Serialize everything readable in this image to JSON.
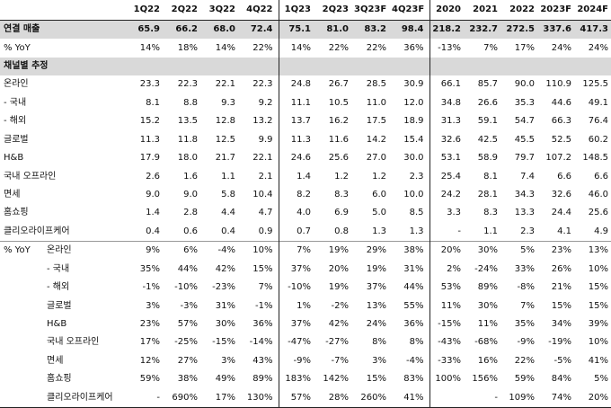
{
  "columns": [
    "1Q22",
    "2Q22",
    "3Q22",
    "4Q22",
    "1Q23",
    "2Q23",
    "3Q23F",
    "4Q23F",
    "2020",
    "2021",
    "2022",
    "2023F",
    "2024F"
  ],
  "rows": [
    {
      "label": "연결 매출",
      "sub": "",
      "style": "gray",
      "values": [
        "65.9",
        "66.2",
        "68.0",
        "72.4",
        "75.1",
        "81.0",
        "83.2",
        "98.4",
        "218.2",
        "232.7",
        "272.5",
        "337.6",
        "417.3"
      ]
    },
    {
      "label": "% YoY",
      "sub": "",
      "style": "",
      "values": [
        "14%",
        "18%",
        "14%",
        "22%",
        "14%",
        "22%",
        "22%",
        "36%",
        "-13%",
        "7%",
        "17%",
        "24%",
        "24%"
      ]
    },
    {
      "label": "채널별 추정",
      "sub": "",
      "style": "gray",
      "values": [
        "",
        "",
        "",
        "",
        "",
        "",
        "",
        "",
        "",
        "",
        "",
        "",
        ""
      ]
    },
    {
      "label": "온라인",
      "sub": "",
      "style": "",
      "values": [
        "23.3",
        "22.3",
        "22.1",
        "22.3",
        "24.8",
        "26.7",
        "28.5",
        "30.9",
        "66.1",
        "85.7",
        "90.0",
        "110.9",
        "125.5"
      ]
    },
    {
      "label": " - 국내",
      "sub": "",
      "style": "",
      "values": [
        "8.1",
        "8.8",
        "9.3",
        "9.2",
        "11.1",
        "10.5",
        "11.0",
        "12.0",
        "34.8",
        "26.6",
        "35.3",
        "44.6",
        "49.1"
      ]
    },
    {
      "label": " - 해외",
      "sub": "",
      "style": "",
      "values": [
        "15.2",
        "13.5",
        "12.8",
        "13.2",
        "13.7",
        "16.2",
        "17.5",
        "18.9",
        "31.3",
        "59.1",
        "54.7",
        "66.3",
        "76.4"
      ]
    },
    {
      "label": "글로벌",
      "sub": "",
      "style": "",
      "values": [
        "11.3",
        "11.8",
        "12.5",
        "9.9",
        "11.3",
        "11.6",
        "14.2",
        "15.4",
        "32.6",
        "42.5",
        "45.5",
        "52.5",
        "60.2"
      ]
    },
    {
      "label": "H&B",
      "sub": "",
      "style": "",
      "values": [
        "17.9",
        "18.0",
        "21.7",
        "22.1",
        "24.6",
        "25.6",
        "27.0",
        "30.0",
        "53.1",
        "58.9",
        "79.7",
        "107.2",
        "148.5"
      ]
    },
    {
      "label": "국내 오프라인",
      "sub": "",
      "style": "",
      "values": [
        "2.6",
        "1.6",
        "1.1",
        "2.1",
        "1.4",
        "1.2",
        "1.2",
        "2.3",
        "25.4",
        "8.1",
        "7.4",
        "6.6",
        "6.6"
      ]
    },
    {
      "label": "면세",
      "sub": "",
      "style": "",
      "values": [
        "9.0",
        "9.0",
        "5.8",
        "10.4",
        "8.2",
        "8.3",
        "6.0",
        "10.0",
        "24.2",
        "28.1",
        "34.3",
        "32.6",
        "46.0"
      ]
    },
    {
      "label": "홈쇼핑",
      "sub": "",
      "style": "",
      "values": [
        "1.4",
        "2.8",
        "4.4",
        "4.7",
        "4.0",
        "6.9",
        "5.0",
        "8.5",
        "3.3",
        "8.3",
        "13.3",
        "24.4",
        "25.6"
      ]
    },
    {
      "label": "클리오라이프케어",
      "sub": "",
      "style": "",
      "values": [
        "0.4",
        "0.6",
        "0.4",
        "0.9",
        "0.7",
        "0.8",
        "1.3",
        "1.3",
        "-",
        "1.1",
        "2.3",
        "4.1",
        "4.9"
      ]
    },
    {
      "label": "% YoY",
      "sub": "온라인",
      "style": "sep",
      "values": [
        "9%",
        "6%",
        "-4%",
        "10%",
        "7%",
        "19%",
        "29%",
        "38%",
        "20%",
        "30%",
        "5%",
        "23%",
        "13%"
      ]
    },
    {
      "label": "",
      "sub": " - 국내",
      "style": "",
      "values": [
        "35%",
        "44%",
        "42%",
        "15%",
        "37%",
        "20%",
        "19%",
        "31%",
        "2%",
        "-24%",
        "33%",
        "26%",
        "10%"
      ]
    },
    {
      "label": "",
      "sub": " - 해외",
      "style": "",
      "values": [
        "-1%",
        "-10%",
        "-23%",
        "7%",
        "-10%",
        "19%",
        "37%",
        "44%",
        "53%",
        "89%",
        "-8%",
        "21%",
        "15%"
      ]
    },
    {
      "label": "",
      "sub": "글로벌",
      "style": "",
      "values": [
        "3%",
        "-3%",
        "31%",
        "-1%",
        "1%",
        "-2%",
        "13%",
        "55%",
        "11%",
        "30%",
        "7%",
        "15%",
        "15%"
      ]
    },
    {
      "label": "",
      "sub": "H&B",
      "style": "",
      "values": [
        "23%",
        "57%",
        "30%",
        "36%",
        "37%",
        "42%",
        "24%",
        "36%",
        "-15%",
        "11%",
        "35%",
        "34%",
        "39%"
      ]
    },
    {
      "label": "",
      "sub": "국내 오프라인",
      "style": "",
      "values": [
        "17%",
        "-25%",
        "-15%",
        "-14%",
        "-47%",
        "-27%",
        "8%",
        "8%",
        "-43%",
        "-68%",
        "-9%",
        "-19%",
        "10%"
      ]
    },
    {
      "label": "",
      "sub": "면세",
      "style": "",
      "values": [
        "12%",
        "27%",
        "3%",
        "43%",
        "-9%",
        "-7%",
        "3%",
        "-4%",
        "-33%",
        "16%",
        "22%",
        "-5%",
        "41%"
      ]
    },
    {
      "label": "",
      "sub": "홈쇼핑",
      "style": "",
      "values": [
        "59%",
        "38%",
        "49%",
        "89%",
        "183%",
        "142%",
        "15%",
        "83%",
        "100%",
        "156%",
        "59%",
        "84%",
        "5%"
      ]
    },
    {
      "label": "",
      "sub": "클리오라이프케어",
      "style": "last",
      "values": [
        "-",
        "690%",
        "17%",
        "130%",
        "57%",
        "28%",
        "260%",
        "41%",
        "",
        "-",
        "109%",
        "74%",
        "20%"
      ]
    }
  ]
}
